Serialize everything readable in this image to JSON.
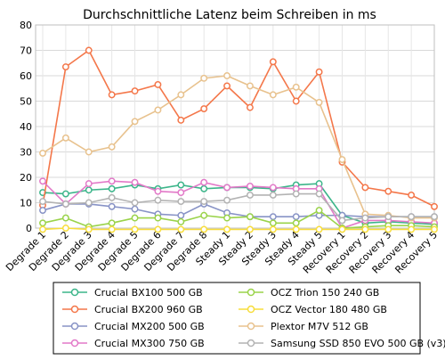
{
  "chart_data": {
    "type": "line",
    "title": "Durchschnittliche Latenz beim Schreiben in ms",
    "xlabel": "",
    "ylabel": "",
    "ylim": [
      0,
      80
    ],
    "yticks": [
      0,
      10,
      20,
      30,
      40,
      50,
      60,
      70,
      80
    ],
    "grid": true,
    "legend_position": "bottom",
    "categories": [
      "Degrade 1",
      "Degrade 2",
      "Degrade 3",
      "Degrade 4",
      "Degrade 5",
      "Degrade 6",
      "Degrade 7",
      "Degrade 8",
      "Steady 1",
      "Steady 2",
      "Steady 3",
      "Steady 4",
      "Steady 5",
      "Recovery 1",
      "Recovery 2",
      "Recovery 3",
      "Recovery 4",
      "Recovery 5"
    ],
    "series": [
      {
        "name": "Crucial BX100 500 GB",
        "color": "#3cb58a",
        "values": [
          14,
          13.5,
          15,
          15.5,
          17,
          15.5,
          17,
          15.5,
          16,
          16,
          15.5,
          17,
          17.5,
          5,
          2,
          2.5,
          2,
          1.5
        ]
      },
      {
        "name": "Crucial BX200 960 GB",
        "color": "#f4774a",
        "values": [
          9,
          63.5,
          70,
          52.5,
          54,
          56.5,
          42.5,
          47,
          56,
          47.5,
          65.5,
          50,
          61.5,
          26,
          16,
          14.5,
          13,
          8.5
        ]
      },
      {
        "name": "Crucial MX200 500 GB",
        "color": "#8893c6",
        "values": [
          7,
          9.5,
          9.5,
          8.5,
          7.5,
          5.5,
          5,
          9.5,
          6,
          4.5,
          4.5,
          4.5,
          5,
          5,
          4.5,
          4.5,
          4.5,
          4.5
        ]
      },
      {
        "name": "Crucial MX300 750 GB",
        "color": "#e279c8",
        "values": [
          18.5,
          9.5,
          17.5,
          18.5,
          18,
          14.5,
          14,
          18,
          16,
          16.5,
          16,
          15.5,
          15.5,
          0,
          3,
          3,
          2.5,
          2
        ]
      },
      {
        "name": "OCZ Trion 150 240 GB",
        "color": "#9ad34a",
        "values": [
          2,
          4,
          0.5,
          2,
          4,
          4,
          2.5,
          5,
          4,
          4.5,
          2,
          2,
          7,
          0,
          0.5,
          1,
          1,
          0.5
        ]
      },
      {
        "name": "OCZ Vector 180 480 GB",
        "color": "#f7dd3c",
        "values": [
          -0.5,
          0,
          -0.5,
          -0.5,
          -0.5,
          -0.5,
          -0.5,
          -0.5,
          -0.5,
          -0.5,
          -0.5,
          -0.5,
          -0.5,
          -0.5,
          -0.5,
          -0.5,
          -0.5,
          -0.5
        ]
      },
      {
        "name": "Plextor M7V 512 GB",
        "color": "#e8c28e",
        "values": [
          29.5,
          35.5,
          30,
          32,
          42,
          46.5,
          52.5,
          59,
          60,
          56,
          52.5,
          55.5,
          49.5,
          27,
          5.5,
          5,
          4,
          4
        ]
      },
      {
        "name": "Samsung SSD 850 EVO 500 GB (v3)",
        "color": "#b3b3b3",
        "values": [
          10.5,
          9.5,
          10,
          12,
          10,
          11,
          10.5,
          10.5,
          11,
          13,
          13,
          13.5,
          13.5,
          3,
          4,
          4.5,
          4.5,
          4.5
        ]
      }
    ]
  }
}
